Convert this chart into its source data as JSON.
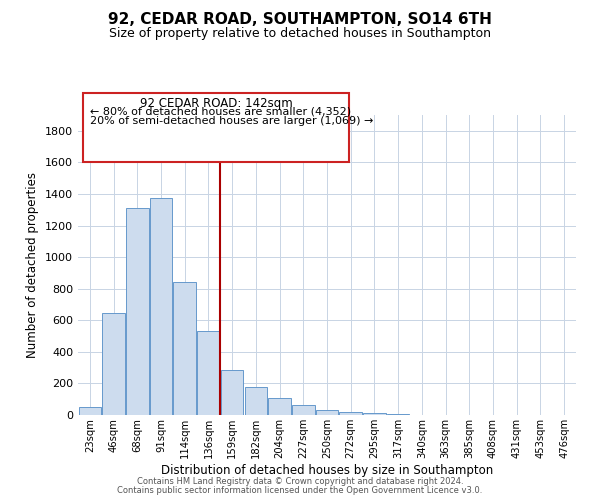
{
  "title": "92, CEDAR ROAD, SOUTHAMPTON, SO14 6TH",
  "subtitle": "Size of property relative to detached houses in Southampton",
  "xlabel": "Distribution of detached houses by size in Southampton",
  "ylabel": "Number of detached properties",
  "bar_color": "#cddcee",
  "bar_edge_color": "#6699cc",
  "categories": [
    "23sqm",
    "46sqm",
    "68sqm",
    "91sqm",
    "114sqm",
    "136sqm",
    "159sqm",
    "182sqm",
    "204sqm",
    "227sqm",
    "250sqm",
    "272sqm",
    "295sqm",
    "317sqm",
    "340sqm",
    "363sqm",
    "385sqm",
    "408sqm",
    "431sqm",
    "453sqm",
    "476sqm"
  ],
  "values": [
    50,
    645,
    1310,
    1375,
    845,
    530,
    285,
    180,
    105,
    65,
    30,
    20,
    12,
    5,
    2,
    1,
    1,
    0,
    0,
    0,
    0
  ],
  "vline_color": "#aa0000",
  "ylim": [
    0,
    1900
  ],
  "yticks": [
    0,
    200,
    400,
    600,
    800,
    1000,
    1200,
    1400,
    1600,
    1800
  ],
  "annotation_title": "92 CEDAR ROAD: 142sqm",
  "annotation_line1": "← 80% of detached houses are smaller (4,352)",
  "annotation_line2": "20% of semi-detached houses are larger (1,069) →",
  "footer1": "Contains HM Land Registry data © Crown copyright and database right 2024.",
  "footer2": "Contains public sector information licensed under the Open Government Licence v3.0.",
  "background_color": "#ffffff",
  "grid_color": "#c8d4e4",
  "title_fontsize": 11,
  "subtitle_fontsize": 9
}
